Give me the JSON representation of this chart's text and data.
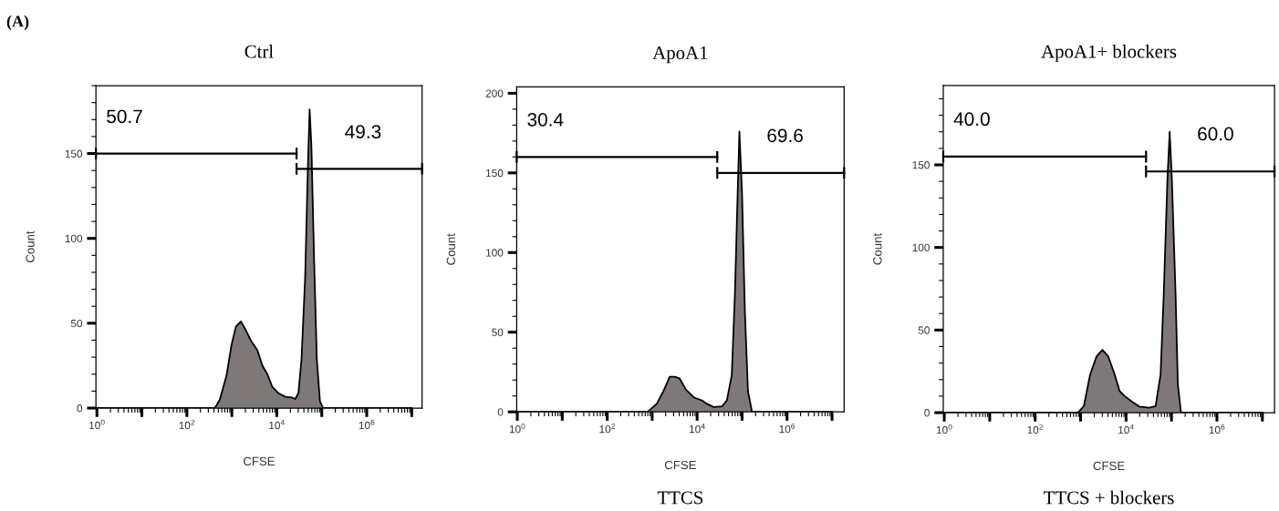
{
  "chart_data": [
    {
      "type": "area",
      "title": "Ctrl",
      "xlabel": "CFSE",
      "ylabel": "Count",
      "log": "x",
      "xlim": [
        0.95,
        17000000
      ],
      "ylim": [
        0,
        190
      ],
      "xticks": [
        {
          "value": 1,
          "label": "10$^{0}$"
        },
        {
          "value": 10,
          "label": null
        },
        {
          "value": 100,
          "label": "10$^{2}$"
        },
        {
          "value": 1000,
          "label": null
        },
        {
          "value": 10000,
          "label": "10$^{4}$"
        },
        {
          "value": 100000,
          "label": null
        },
        {
          "value": 1000000,
          "label": "10$^{6}$"
        },
        {
          "value": 10000000,
          "label": null
        }
      ],
      "yticks": [
        0,
        50,
        100,
        150
      ],
      "series": [
        {
          "color": "#7f7878",
          "x": [
            1,
            420,
            540,
            760,
            980,
            1230,
            1590,
            2040,
            2630,
            3720,
            4790,
            6170,
            7940,
            11000,
            15500,
            21900,
            25700,
            30200,
            35500,
            42700,
            49000,
            53700,
            58900,
            67600,
            77600,
            91200,
            107000,
            10000000
          ],
          "values": [
            0,
            0,
            5,
            19,
            37,
            48,
            51,
            46,
            40,
            34,
            25,
            20,
            12.5,
            8.7,
            6.7,
            6.2,
            5.4,
            8.7,
            29,
            77,
            141,
            176,
            154,
            87,
            29,
            3.9,
            0,
            0
          ]
        },
        {
          "type": "line",
          "name": "50.7",
          "color": "#000000",
          "x": [
            0.95,
            27500
          ],
          "values": [
            150,
            150
          ]
        },
        {
          "type": "line",
          "name": "49.3",
          "color": "#000000",
          "x": [
            27500,
            17000000
          ],
          "values": [
            141,
            141
          ]
        }
      ],
      "annotations": [
        "(A)"
      ]
    },
    {
      "type": "area",
      "title": "ApoA1",
      "xlabel": "CFSE",
      "ylabel": "Count",
      "log": "x",
      "xlim": [
        0.97,
        18600000
      ],
      "ylim": [
        0,
        204
      ],
      "xticks": [
        {
          "value": 1,
          "label": "10$^{0}$"
        },
        {
          "value": 10,
          "label": null
        },
        {
          "value": 100,
          "label": "10$^{2}$"
        },
        {
          "value": 1000,
          "label": null
        },
        {
          "value": 10000,
          "label": "10$^{4}$"
        },
        {
          "value": 100000,
          "label": null
        },
        {
          "value": 1000000,
          "label": "10$^{6}$"
        },
        {
          "value": 10000000,
          "label": null
        }
      ],
      "yticks": [
        0,
        50,
        100,
        150,
        200
      ],
      "series": [
        {
          "color": "#7f7878",
          "x": [
            1,
            790,
            1260,
            1780,
            2450,
            3160,
            4070,
            5620,
            8510,
            13200,
            16600,
            23400,
            35500,
            45700,
            58900,
            69200,
            79400,
            87100,
            100000,
            115000,
            135000,
            166000,
            10000000
          ],
          "values": [
            0,
            0,
            5,
            13,
            22,
            22,
            21,
            14,
            9,
            7,
            5,
            3,
            3.5,
            7,
            23,
            74,
            136,
            176,
            136,
            64,
            13,
            0,
            0
          ]
        },
        {
          "type": "line",
          "name": "30.4",
          "color": "#000000",
          "x": [
            0.97,
            28000
          ],
          "values": [
            160,
            160
          ]
        },
        {
          "type": "line",
          "name": "69.6",
          "color": "#000000",
          "x": [
            28000,
            18600000
          ],
          "values": [
            150,
            150
          ]
        }
      ],
      "annotations": [
        "TTCS"
      ]
    },
    {
      "type": "area",
      "title": "ApoA1+ blockers",
      "xlabel": "CFSE",
      "ylabel": "Count",
      "log": "x",
      "xlim": [
        0.95,
        18500000
      ],
      "ylim": [
        0,
        198
      ],
      "xticks": [
        {
          "value": 1,
          "label": "10$^{0}$"
        },
        {
          "value": 10,
          "label": null
        },
        {
          "value": 100,
          "label": "10$^{2}$"
        },
        {
          "value": 1000,
          "label": null
        },
        {
          "value": 10000,
          "label": "10$^{4}$"
        },
        {
          "value": 100000,
          "label": null
        },
        {
          "value": 1000000,
          "label": "10$^{6}$"
        },
        {
          "value": 10000000,
          "label": null
        }
      ],
      "yticks": [
        0,
        50,
        100,
        150
      ],
      "series": [
        {
          "color": "#7f7878",
          "x": [
            1,
            870,
            1180,
            1620,
            2240,
            3020,
            4070,
            5620,
            7240,
            9330,
            12900,
            19500,
            32400,
            44700,
            57500,
            67600,
            81300,
            91200,
            102000,
            123000,
            138000,
            162000,
            10000000
          ],
          "values": [
            0,
            0,
            4,
            23,
            34,
            38,
            34,
            23,
            13,
            10,
            7,
            3.7,
            3,
            4,
            23,
            72,
            141,
            170,
            141,
            72,
            17,
            0,
            0
          ]
        },
        {
          "type": "line",
          "name": "40.0",
          "color": "#000000",
          "x": [
            0.95,
            27500
          ],
          "values": [
            155,
            155
          ]
        },
        {
          "type": "line",
          "name": "60.0",
          "color": "#000000",
          "x": [
            27500,
            18500000
          ],
          "values": [
            146,
            146
          ]
        }
      ],
      "annotations": [
        "TTCS + blockers"
      ]
    }
  ]
}
